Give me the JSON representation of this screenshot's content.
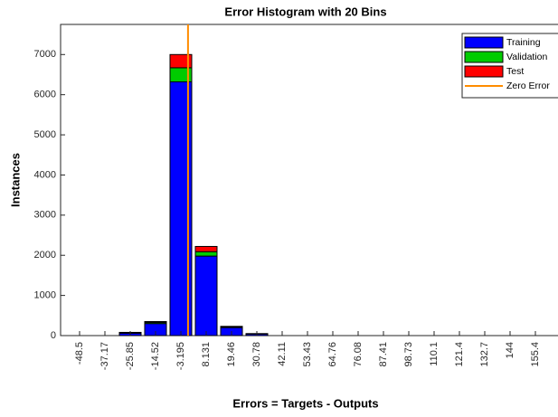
{
  "chart_data": {
    "type": "stacked_bar",
    "title": "Error Histogram with 20 Bins",
    "x_label": "Errors = Targets - Outputs",
    "y_label": "Instances",
    "categories": [
      "-48.5",
      "-37.17",
      "-25.85",
      "-14.52",
      "-3.195",
      "8.131",
      "19.46",
      "30.78",
      "42.11",
      "53.43",
      "64.76",
      "76.08",
      "87.41",
      "98.73",
      "110.1",
      "121.4",
      "132.7",
      "144",
      "155.4",
      null
    ],
    "series": [
      {
        "name": "Training",
        "color": "#0000ff",
        "values": [
          0,
          0,
          60,
          300,
          6320,
          1980,
          200,
          40,
          0,
          0,
          0,
          0,
          0,
          0,
          0,
          0,
          0,
          0,
          0,
          0
        ]
      },
      {
        "name": "Validation",
        "color": "#00cc00",
        "values": [
          0,
          0,
          10,
          30,
          350,
          110,
          15,
          5,
          0,
          0,
          0,
          0,
          0,
          0,
          0,
          0,
          0,
          0,
          0,
          0
        ]
      },
      {
        "name": "Test",
        "color": "#ff0000",
        "values": [
          0,
          0,
          10,
          20,
          330,
          130,
          15,
          5,
          0,
          0,
          0,
          0,
          0,
          0,
          0,
          0,
          0,
          0,
          0,
          0
        ]
      }
    ],
    "zero_line": {
      "name": "Zero Error",
      "color": "#ff8c00",
      "value": 0
    },
    "ylim": [
      0,
      7750
    ],
    "yticks": [
      0,
      1000,
      2000,
      3000,
      4000,
      5000,
      6000,
      7000
    ],
    "legend": "upper right"
  }
}
